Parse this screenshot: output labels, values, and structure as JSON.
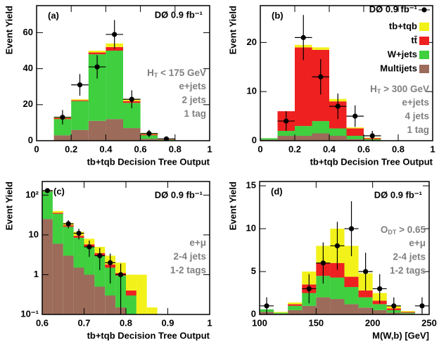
{
  "chart_data": [
    {
      "type": "histogram",
      "label": "(a)",
      "experiment": "DØ  0.9 fb⁻¹",
      "xlabel": "tb+tqb Decision Tree Output",
      "ylabel": "Event Yield",
      "bins": [
        0.1,
        0.2,
        0.3,
        0.4,
        0.5,
        0.6,
        0.7,
        0.8
      ],
      "series": [
        {
          "color": "#9c6b5a",
          "values": [
            3,
            6,
            11,
            12,
            7,
            1,
            0.2
          ]
        },
        {
          "color": "#3fcf3f",
          "values": [
            9,
            16,
            37,
            38,
            14,
            2,
            0.3
          ]
        },
        {
          "color": "#ee2020",
          "values": [
            0.5,
            0.5,
            1,
            2,
            1,
            0.5,
            0.2
          ]
        },
        {
          "color": "#f2f21a",
          "values": [
            0.5,
            0.5,
            1,
            2,
            1,
            0.5,
            0.1
          ]
        }
      ],
      "data": {
        "x": [
          0.15,
          0.25,
          0.35,
          0.45,
          0.55,
          0.65,
          0.75
        ],
        "values": [
          13,
          31,
          41,
          59,
          23,
          4,
          1
        ],
        "errors": [
          4,
          6,
          6.5,
          8,
          5,
          2,
          1
        ]
      },
      "xlim": [
        0,
        1
      ],
      "xticks": [
        0,
        0.2,
        0.4,
        0.6,
        0.8,
        1
      ],
      "ylim": [
        0,
        75
      ],
      "yticks": [
        0,
        20,
        40,
        60
      ],
      "annotations": [
        {
          "main": "H",
          "sub": "T",
          "rest": " < 175 GeV"
        },
        "e+jets",
        "2 jets",
        "1 tag"
      ]
    },
    {
      "type": "histogram",
      "label": "(b)",
      "legend": "top-right",
      "xlabel": "tb+tqb Decision Tree Output",
      "ylabel": "Event Yield",
      "bins": [
        0,
        0.1,
        0.2,
        0.3,
        0.4,
        0.5,
        0.6,
        0.7
      ],
      "series": [
        {
          "name": "Multijets",
          "color": "#9c6b5a",
          "values": [
            0.2,
            1,
            1,
            1.5,
            1,
            0.3,
            0.1
          ]
        },
        {
          "name": "W+jets",
          "color": "#3fcf3f",
          "values": [
            0.3,
            1,
            2,
            2.5,
            1.5,
            0.7,
            0.2
          ]
        },
        {
          "name": "tt̄",
          "color": "#ee2020",
          "values": [
            0,
            4,
            16,
            14.5,
            5.5,
            1.5,
            0.2
          ]
        },
        {
          "name": "tb+tqb",
          "color": "#f2f21a",
          "values": [
            0,
            0,
            0.5,
            0.5,
            0.5,
            0.2,
            0.1
          ]
        }
      ],
      "data": {
        "name": "DØ  0.9 fb⁻¹",
        "x": [
          0.15,
          0.25,
          0.35,
          0.45,
          0.55,
          0.65
        ],
        "values": [
          4,
          21,
          13,
          7,
          5,
          1
        ],
        "errors": [
          2,
          4.6,
          3.6,
          2.6,
          2.2,
          1
        ]
      },
      "xlim": [
        0,
        1
      ],
      "xticks": [
        0,
        0.2,
        0.4,
        0.6,
        0.8,
        1
      ],
      "ylim": [
        0,
        27.5
      ],
      "yticks": [
        0,
        10,
        20
      ],
      "annotations": [
        {
          "main": "H",
          "sub": "T",
          "rest": " > 300 GeV"
        },
        "e+jets",
        "4 jets",
        "1 tag"
      ]
    },
    {
      "type": "histogram",
      "label": "(c)",
      "experiment": "DØ  0.9 fb⁻¹",
      "log_y": true,
      "xlabel": "tb+tqb Decision Tree Output",
      "ylabel": "Event Yield",
      "bins": [
        0.6,
        0.625,
        0.65,
        0.675,
        0.7,
        0.725,
        0.75,
        0.775,
        0.8,
        0.825,
        0.85,
        0.875
      ],
      "series": [
        {
          "color": "#9c6b5a",
          "values": [
            25,
            6,
            3,
            1.5,
            1,
            0.5,
            0.3,
            0.15,
            0,
            0,
            0
          ]
        },
        {
          "color": "#3fcf3f",
          "values": [
            100,
            28,
            13,
            7,
            4,
            2.5,
            1.2,
            0.8,
            0.3,
            0,
            0
          ]
        },
        {
          "color": "#ee2020",
          "values": [
            2,
            2,
            1.5,
            1,
            0.8,
            0.5,
            0.3,
            0.15,
            0.1,
            0,
            0
          ]
        },
        {
          "color": "#f2f21a",
          "values": [
            3,
            4,
            2.5,
            2.5,
            2.2,
            1.5,
            1.2,
            0.9,
            0.6,
            1,
            0.15
          ]
        }
      ],
      "data": {
        "x": [
          0.6125,
          0.6625,
          0.6875,
          0.7125,
          0.7375,
          0.7625,
          0.7875
        ],
        "values": [
          130,
          19,
          11,
          5,
          3,
          2,
          1
        ],
        "errors": [
          11,
          4.4,
          3.3,
          2.2,
          1.7,
          1.4,
          0.9
        ]
      },
      "xlim": [
        0.6,
        1
      ],
      "xticks": [
        0.6,
        0.7,
        0.8,
        0.9,
        1
      ],
      "ylim": [
        0.1,
        220
      ],
      "yticks": [
        {
          "value": 0.1,
          "label": "10⁻¹"
        },
        1,
        10,
        {
          "value": 100,
          "label": "10²"
        }
      ],
      "annotations": [
        "e+μ",
        "2-4 jets",
        "1-2 tags"
      ]
    },
    {
      "type": "histogram",
      "label": "(d)",
      "experiment": "DØ  0.9 fb⁻¹",
      "xlabel": "M(W,b)   [GeV]",
      "ylabel": "Event Yield",
      "bins": [
        100,
        112.5,
        125,
        137.5,
        150,
        162.5,
        175,
        187.5,
        200,
        212.5,
        225,
        237.5,
        250
      ],
      "series": [
        {
          "color": "#9c6b5a",
          "values": [
            0.3,
            0.1,
            0.5,
            1,
            2,
            1.8,
            1.2,
            0.8,
            0.5,
            0.2,
            0.1,
            0
          ]
        },
        {
          "color": "#3fcf3f",
          "values": [
            0.3,
            0.1,
            0.5,
            1.5,
            2.5,
            2.5,
            2,
            1.2,
            0.7,
            0.3,
            0.1,
            0
          ]
        },
        {
          "color": "#ee2020",
          "values": [
            0,
            0,
            0.2,
            1,
            1.5,
            1.7,
            1.2,
            0.8,
            0.4,
            0.2,
            0.1,
            0
          ]
        },
        {
          "color": "#f2f21a",
          "values": [
            0,
            0.1,
            0.2,
            1.5,
            2,
            4,
            3.6,
            2,
            0.9,
            0.3,
            0.1,
            0
          ]
        }
      ],
      "data": {
        "x": [
          106.25,
          143.75,
          156.25,
          168.75,
          181.25,
          193.75,
          206.25,
          218.75,
          243.75
        ],
        "values": [
          1,
          3,
          6,
          8,
          10,
          5,
          3,
          1,
          1
        ],
        "errors": [
          1,
          1.7,
          2.4,
          2.8,
          3.2,
          2.2,
          1.7,
          1,
          1
        ]
      },
      "xlim": [
        100,
        250
      ],
      "xticks": [
        100,
        150,
        200,
        250
      ],
      "ylim": [
        0,
        15.5
      ],
      "yticks": [
        0,
        5,
        10,
        15
      ],
      "annotations": [
        {
          "main": "O",
          "sub": "DT",
          "rest": " > 0.65"
        },
        "e+μ",
        "2-4 jets",
        "1-2 tags"
      ]
    }
  ]
}
